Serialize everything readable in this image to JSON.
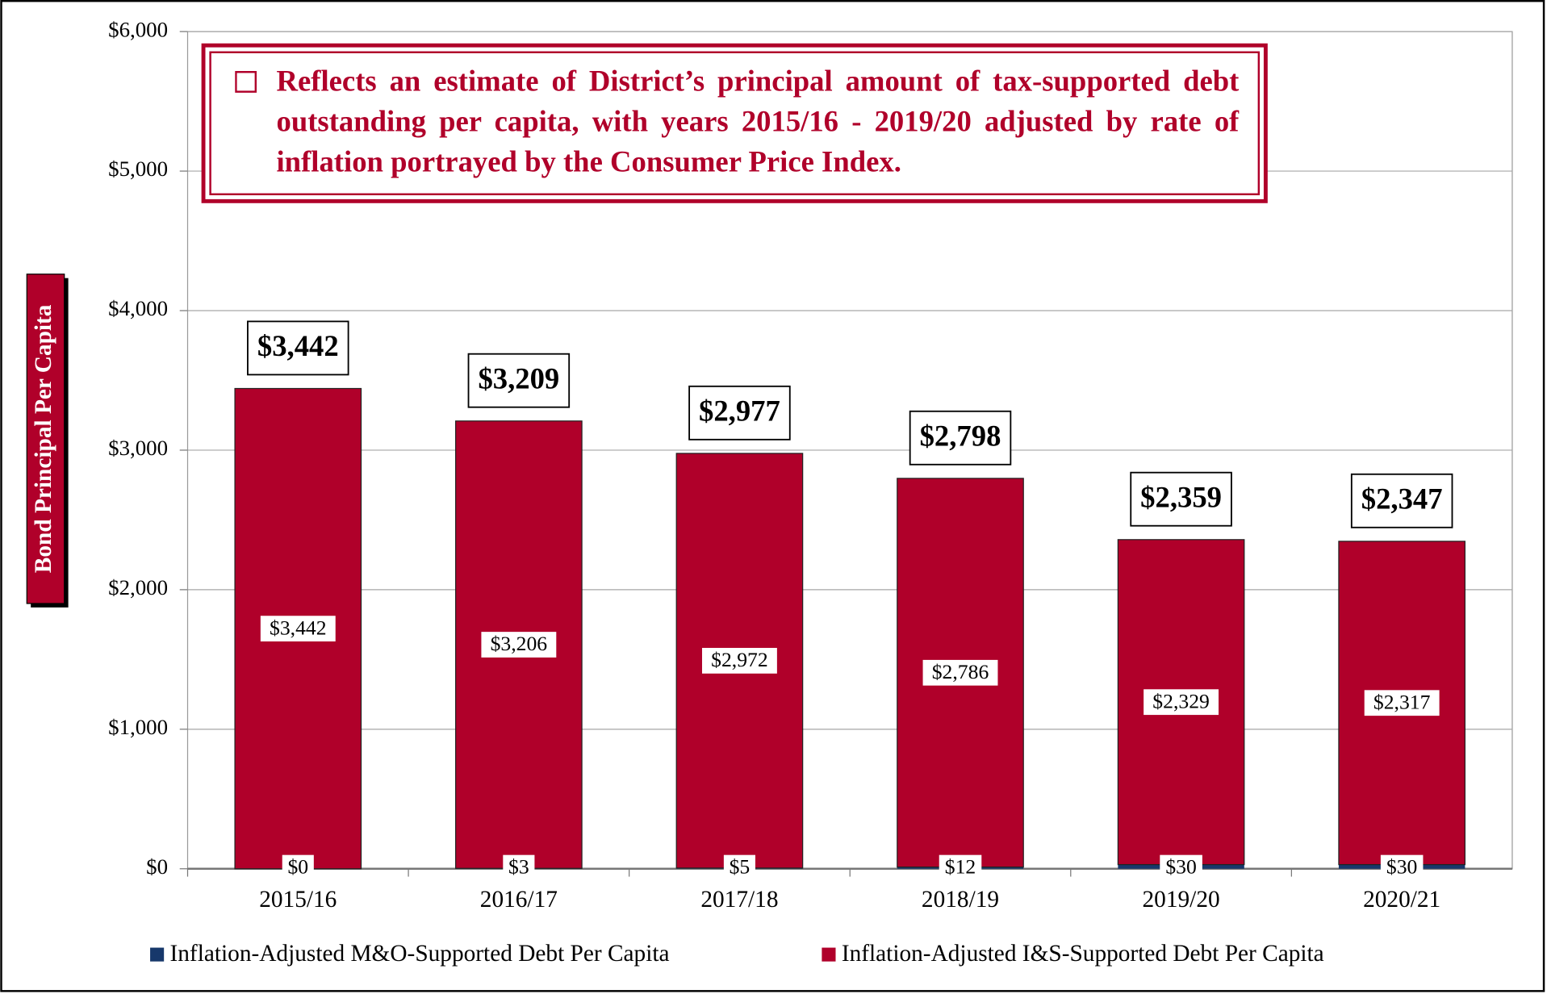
{
  "chart_data": {
    "type": "stacked_bar",
    "annotation": "Reflects an estimate of District’s principal amount of tax-supported debt outstanding per capita, with years 2015/16 - 2019/20 adjusted by rate of inflation portrayed by the Consumer Price Index.",
    "y_label": "Bond Principal Per Capita",
    "categories": [
      "2015/16",
      "2016/17",
      "2017/18",
      "2018/19",
      "2019/20",
      "2020/21"
    ],
    "series": [
      {
        "name": "Inflation-Adjusted M&O-Supported Debt Per Capita",
        "color": "#17386b",
        "values": [
          0,
          3,
          5,
          12,
          30,
          30
        ],
        "value_labels": [
          "$0",
          "$3",
          "$5",
          "$12",
          "$30",
          "$30"
        ]
      },
      {
        "name": "Inflation-Adjusted I&S-Supported Debt Per Capita",
        "color": "#b0002a",
        "values": [
          3442,
          3206,
          2972,
          2786,
          2329,
          2317
        ],
        "value_labels": [
          "$3,442",
          "$3,206",
          "$2,972",
          "$2,786",
          "$2,329",
          "$2,317"
        ]
      }
    ],
    "totals": [
      3442,
      3209,
      2977,
      2798,
      2359,
      2347
    ],
    "total_labels": [
      "$3,442",
      "$3,209",
      "$2,977",
      "$2,798",
      "$2,359",
      "$2,347"
    ],
    "ylim": [
      0,
      6000
    ],
    "yticks": [
      {
        "value": 0,
        "label": "$0"
      },
      {
        "value": 1000,
        "label": "$1,000"
      },
      {
        "value": 2000,
        "label": "$2,000"
      },
      {
        "value": 3000,
        "label": "$3,000"
      },
      {
        "value": 4000,
        "label": "$4,000"
      },
      {
        "value": 5000,
        "label": "$5,000"
      },
      {
        "value": 6000,
        "label": "$6,000"
      }
    ],
    "grid": true,
    "legend": "bottom"
  }
}
